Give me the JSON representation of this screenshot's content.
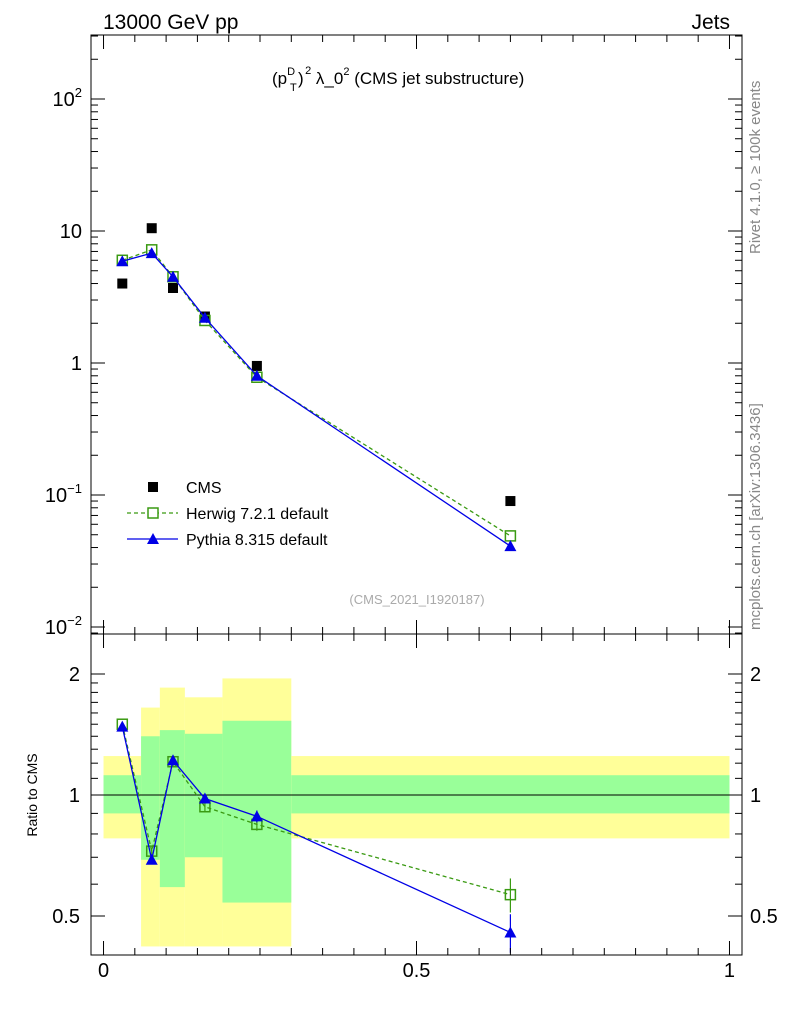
{
  "header": {
    "left": "13000 GeV pp",
    "right": "Jets"
  },
  "side_labels": {
    "rivet": "Rivet 4.1.0, ≥ 100k events",
    "mcplots": "mcplots.cern.ch [arXiv:1306.3436]"
  },
  "chart_data": [
    {
      "type": "line",
      "title": "(p_T^D)^2 λ_0^2 (CMS jet substructure)",
      "title_parts": {
        "open": "(p",
        "sub": "T",
        "sup": "D",
        "close_exp": "2",
        "lambda": " λ_0",
        "lambda_exp": "2",
        "rest": " (CMS jet substructure)"
      },
      "watermark": "(CMS_2021_I1920187)",
      "yscale": "log",
      "ylim": [
        0.008,
        300
      ],
      "xlim": [
        -0.02,
        1.02
      ],
      "ytick_labels": [
        {
          "value": 0.01,
          "base": "10",
          "exp": "−2"
        },
        {
          "value": 0.1,
          "base": "10",
          "exp": "−1"
        },
        {
          "value": 1,
          "base": "1",
          "exp": ""
        },
        {
          "value": 10,
          "base": "10",
          "exp": ""
        },
        {
          "value": 100,
          "base": "10",
          "exp": "2"
        }
      ],
      "legend_position": "bottom-left",
      "series": [
        {
          "name": "CMS",
          "color": "#000000",
          "style": "markers",
          "marker": "filled-square",
          "x": [
            0.03,
            0.077,
            0.111,
            0.162,
            0.245,
            0.65
          ],
          "y": [
            4.0,
            10.5,
            3.7,
            2.25,
            0.95,
            0.09
          ]
        },
        {
          "name": "Herwig 7.2.1 default",
          "color": "#3a9a12",
          "style": "dashed",
          "marker": "open-square",
          "x": [
            0.03,
            0.077,
            0.111,
            0.162,
            0.245,
            0.65
          ],
          "y": [
            6.0,
            7.2,
            4.5,
            2.1,
            0.78,
            0.049
          ]
        },
        {
          "name": "Pythia 8.315 default",
          "color": "#0000e6",
          "style": "solid",
          "marker": "filled-triangle",
          "x": [
            0.03,
            0.077,
            0.111,
            0.162,
            0.245,
            0.65
          ],
          "y": [
            5.9,
            6.8,
            4.5,
            2.2,
            0.8,
            0.041
          ]
        }
      ]
    },
    {
      "type": "line",
      "ylabel": "Ratio to CMS",
      "xlabel": "",
      "xlim": [
        -0.02,
        1.02
      ],
      "ylim": [
        0.42,
        2.3
      ],
      "yscale": "log",
      "xtick_labels": [
        {
          "value": 0,
          "label": "0"
        },
        {
          "value": 0.5,
          "label": "0.5"
        },
        {
          "value": 1,
          "label": "1"
        }
      ],
      "ytick_labels": [
        {
          "value": 0.5,
          "label": "0.5"
        },
        {
          "value": 1,
          "label": "1"
        },
        {
          "value": 2,
          "label": "2"
        }
      ],
      "reference_line": 1,
      "uncertainty_bands": [
        {
          "x0": 0.0,
          "x1": 0.06,
          "green": [
            0.9,
            1.12
          ],
          "yellow": [
            0.78,
            1.25
          ]
        },
        {
          "x0": 0.06,
          "x1": 0.09,
          "green": [
            0.69,
            1.4
          ],
          "yellow": [
            0.42,
            1.65
          ]
        },
        {
          "x0": 0.09,
          "x1": 0.13,
          "green": [
            0.59,
            1.45
          ],
          "yellow": [
            0.42,
            1.85
          ]
        },
        {
          "x0": 0.13,
          "x1": 0.19,
          "green": [
            0.7,
            1.42
          ],
          "yellow": [
            0.42,
            1.75
          ]
        },
        {
          "x0": 0.19,
          "x1": 0.3,
          "green": [
            0.54,
            1.53
          ],
          "yellow": [
            0.42,
            1.95
          ]
        },
        {
          "x0": 0.3,
          "x1": 1.0,
          "green": [
            0.9,
            1.12
          ],
          "yellow": [
            0.78,
            1.25
          ]
        }
      ],
      "series": [
        {
          "name": "Herwig 7.2.1 default",
          "color": "#3a9a12",
          "style": "dashed",
          "marker": "open-square",
          "x": [
            0.03,
            0.077,
            0.111,
            0.162,
            0.245,
            0.65
          ],
          "y": [
            1.5,
            0.725,
            1.21,
            0.935,
            0.845,
            0.565
          ],
          "err": [
            0.01,
            0.015,
            0.03,
            0.025,
            0.03,
            0.055
          ]
        },
        {
          "name": "Pythia 8.315 default",
          "color": "#0000e6",
          "style": "solid",
          "marker": "filled-triangle",
          "x": [
            0.03,
            0.077,
            0.111,
            0.162,
            0.245,
            0.65
          ],
          "y": [
            1.48,
            0.69,
            1.22,
            0.98,
            0.885,
            0.455
          ],
          "err": [
            0.01,
            0.015,
            0.03,
            0.025,
            0.03,
            0.05
          ]
        }
      ]
    }
  ]
}
